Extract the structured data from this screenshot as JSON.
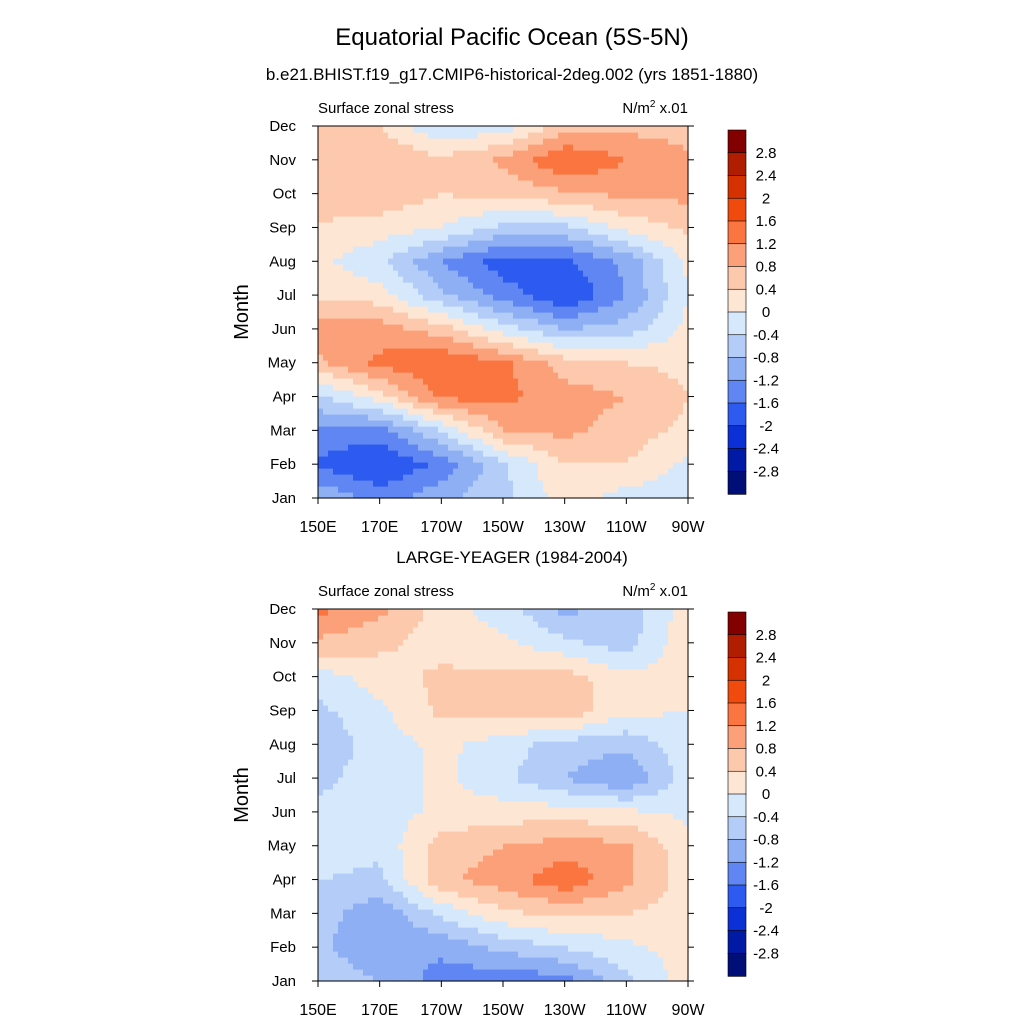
{
  "figure": {
    "title": "Equatorial Pacific Ocean (5S-5N)"
  },
  "colorbar": {
    "levels": [
      -2.8,
      -2.4,
      -2,
      -1.6,
      -1.2,
      -0.8,
      -0.4,
      0,
      0.4,
      0.8,
      1.2,
      1.6,
      2,
      2.4,
      2.8
    ],
    "labels": [
      "2.8",
      "2.4",
      "2",
      "1.6",
      "1.2",
      "0.8",
      "0.4",
      "0",
      "-0.4",
      "-0.8",
      "-1.2",
      "-1.6",
      "-2",
      "-2.4",
      "-2.8"
    ],
    "colors": [
      "#830000",
      "#b11d00",
      "#d63100",
      "#f14a0d",
      "#fb7540",
      "#fba078",
      "#fdc9ad",
      "#fde6d4",
      "#d6e8fb",
      "#b3cdf8",
      "#8eaff4",
      "#5f86f2",
      "#2d5bf0",
      "#0b30d6",
      "#001aa6",
      "#000e78"
    ]
  },
  "chart_data": [
    {
      "type": "heatmap",
      "title": "b.e21.BHIST.f19_g17.CMIP6-historical-2deg.002 (yrs 1851-1880)",
      "left_label": "Surface zonal stress",
      "right_label": "N/m",
      "right_sup": "2",
      "right_suffix": " x.01",
      "ylabel": "Month",
      "x_ticks": [
        "150E",
        "170E",
        "170W",
        "150W",
        "130W",
        "110W",
        "90W"
      ],
      "y_ticks": [
        "Jan",
        "Feb",
        "Mar",
        "Apr",
        "May",
        "Jun",
        "Jul",
        "Aug",
        "Sep",
        "Oct",
        "Nov",
        "Dec"
      ],
      "xlim": [
        150,
        270
      ],
      "ylim": [
        1,
        12
      ],
      "levels": [
        -2.8,
        -2.4,
        -2,
        -1.6,
        -1.2,
        -0.8,
        -0.4,
        0,
        0.4,
        0.8,
        1.2,
        1.6,
        2,
        2.4,
        2.8
      ],
      "x": [
        150,
        170,
        190,
        210,
        230,
        250,
        270
      ],
      "y": [
        "Jan",
        "Feb",
        "Mar",
        "Apr",
        "May",
        "Jun",
        "Jul",
        "Aug",
        "Sep",
        "Oct",
        "Nov",
        "Dec"
      ],
      "values": [
        [
          -0.8,
          -1.4,
          -0.9,
          -0.5,
          0.2,
          -0.2,
          -0.3
        ],
        [
          -1.7,
          -2.0,
          -1.5,
          -0.5,
          0.4,
          0.4,
          -0.1
        ],
        [
          -1.3,
          -1.4,
          -0.4,
          0.8,
          0.9,
          0.6,
          0.3
        ],
        [
          -0.5,
          0.2,
          1.3,
          1.3,
          1.0,
          0.8,
          0.4
        ],
        [
          0.7,
          1.3,
          1.6,
          1.3,
          0.6,
          0.4,
          0.3
        ],
        [
          1.1,
          1.0,
          0.6,
          -0.2,
          -0.8,
          -0.6,
          0.1
        ],
        [
          0.3,
          0.2,
          -0.7,
          -1.4,
          -2.0,
          -1.2,
          0.0
        ],
        [
          0.1,
          -0.3,
          -1.2,
          -1.8,
          -1.7,
          -1.1,
          0.1
        ],
        [
          0.3,
          0.2,
          0.0,
          -0.5,
          -0.5,
          0.1,
          0.5
        ],
        [
          0.8,
          0.7,
          0.4,
          0.5,
          0.7,
          0.9,
          0.9
        ],
        [
          0.7,
          0.8,
          0.5,
          0.9,
          1.6,
          1.2,
          0.9
        ],
        [
          0.6,
          0.4,
          -0.4,
          -0.2,
          0.6,
          0.7,
          0.6
        ]
      ]
    },
    {
      "type": "heatmap",
      "title": "LARGE-YEAGER (1984-2004)",
      "left_label": "Surface zonal stress",
      "right_label": "N/m",
      "right_sup": "2",
      "right_suffix": " x.01",
      "ylabel": "Month",
      "x_ticks": [
        "150E",
        "170E",
        "170W",
        "150W",
        "130W",
        "110W",
        "90W"
      ],
      "y_ticks": [
        "Jan",
        "Feb",
        "Mar",
        "Apr",
        "May",
        "Jun",
        "Jul",
        "Aug",
        "Sep",
        "Oct",
        "Nov",
        "Dec"
      ],
      "xlim": [
        150,
        270
      ],
      "ylim": [
        1,
        12
      ],
      "levels": [
        -2.8,
        -2.4,
        -2,
        -1.6,
        -1.2,
        -0.8,
        -0.4,
        0,
        0.4,
        0.8,
        1.2,
        1.6,
        2,
        2.4,
        2.8
      ],
      "x": [
        150,
        170,
        190,
        210,
        230,
        250,
        270
      ],
      "y": [
        "Jan",
        "Feb",
        "Mar",
        "Apr",
        "May",
        "Jun",
        "Jul",
        "Aug",
        "Sep",
        "Oct",
        "Nov",
        "Dec"
      ],
      "values": [
        [
          -0.4,
          -0.8,
          -1.4,
          -1.5,
          -1.4,
          -0.5,
          0.2
        ],
        [
          -0.7,
          -1.2,
          -1.1,
          -0.7,
          -0.4,
          -0.1,
          0.2
        ],
        [
          -0.6,
          -1.1,
          -0.3,
          0.3,
          0.5,
          0.4,
          0.2
        ],
        [
          -0.4,
          -0.5,
          0.7,
          1.0,
          1.5,
          0.9,
          0.2
        ],
        [
          -0.2,
          -0.3,
          0.6,
          0.8,
          1.0,
          0.9,
          0.1
        ],
        [
          -0.3,
          -0.2,
          0.1,
          0.2,
          0.2,
          0.1,
          -0.1
        ],
        [
          -0.5,
          -0.2,
          0.1,
          -0.3,
          -0.8,
          -1.2,
          -0.2
        ],
        [
          -0.7,
          -0.2,
          0.1,
          -0.2,
          -0.6,
          -0.7,
          -0.1
        ],
        [
          -0.5,
          -0.1,
          0.5,
          0.6,
          0.7,
          0.1,
          0.0
        ],
        [
          -0.2,
          0.2,
          0.5,
          0.5,
          0.6,
          0.1,
          0.2
        ],
        [
          0.7,
          0.5,
          0.2,
          0.1,
          -0.3,
          -0.6,
          0.3
        ],
        [
          1.3,
          0.9,
          0.2,
          -0.2,
          -0.9,
          -0.6,
          0.2
        ]
      ]
    }
  ]
}
